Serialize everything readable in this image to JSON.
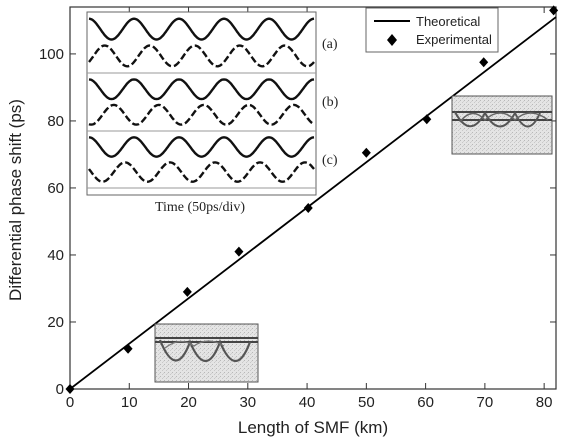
{
  "chart_data": {
    "type": "line",
    "xlabel": "Length of SMF (km)",
    "ylabel": "Differential phase shift (ps)",
    "xlim": [
      0,
      82
    ],
    "ylim": [
      0,
      114
    ],
    "xticks": [
      0,
      10,
      20,
      30,
      40,
      50,
      60,
      70,
      80
    ],
    "yticks": [
      0,
      20,
      40,
      60,
      80,
      100
    ],
    "grid": false,
    "legend_position": "top-right",
    "series": [
      {
        "name": "Theoretical",
        "style": "solid-line",
        "x": [
          0,
          82
        ],
        "y": [
          0,
          111
        ]
      },
      {
        "name": "Experimental",
        "style": "diamond-marker",
        "x": [
          0,
          9.8,
          19.8,
          28.5,
          40.2,
          50,
          60.2,
          69.8,
          81.6
        ],
        "y": [
          0,
          12,
          29,
          41,
          54,
          70.5,
          80.5,
          97.5,
          113
        ]
      }
    ],
    "inset_waveforms": {
      "xlabel": "Time (50ps/div)",
      "panel_labels": [
        "(a)",
        "(b)",
        "(c)"
      ],
      "panel_phase_shifts": [
        0.35,
        0.55,
        0.8
      ],
      "periods": 5
    }
  }
}
